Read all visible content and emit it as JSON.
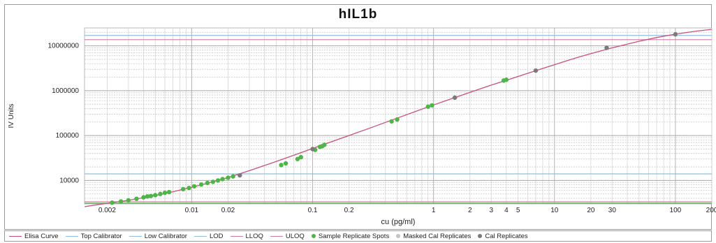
{
  "chart_data": {
    "type": "scatter",
    "title": "hIL1b",
    "xlabel": "cu (pg/ml)",
    "ylabel": "IV Units",
    "x_scale": "log",
    "y_scale": "log",
    "xlim": [
      0.0013,
      200
    ],
    "ylim": [
      3000,
      25000000
    ],
    "x_ticks": [
      {
        "value": 0.002,
        "label": "0.002"
      },
      {
        "value": 0.01,
        "label": "0.01"
      },
      {
        "value": 0.02,
        "label": "0.02"
      },
      {
        "value": 0.1,
        "label": "0.1"
      },
      {
        "value": 0.2,
        "label": "0.2"
      },
      {
        "value": 1,
        "label": "1"
      },
      {
        "value": 2,
        "label": "2"
      },
      {
        "value": 3,
        "label": "3"
      },
      {
        "value": 4,
        "label": "4"
      },
      {
        "value": 5,
        "label": "5"
      },
      {
        "value": 10,
        "label": "10"
      },
      {
        "value": 20,
        "label": "20"
      },
      {
        "value": 30,
        "label": "30"
      },
      {
        "value": 100,
        "label": "100"
      },
      {
        "value": 200,
        "label": "200"
      }
    ],
    "y_ticks": [
      {
        "value": 10000,
        "label": "10000"
      },
      {
        "value": 100000,
        "label": "100000"
      },
      {
        "value": 1000000,
        "label": "1000000"
      },
      {
        "value": 10000000,
        "label": "10000000"
      }
    ],
    "grid": true,
    "legend_position": "bottom",
    "series": [
      {
        "name": "Elisa Curve",
        "kind": "line",
        "color": "#c9507a",
        "x": [
          0.0013,
          0.002,
          0.003,
          0.005,
          0.007,
          0.01,
          0.015,
          0.02,
          0.03,
          0.05,
          0.07,
          0.1,
          0.15,
          0.2,
          0.3,
          0.5,
          0.7,
          1,
          1.5,
          2,
          3,
          4,
          5,
          7,
          10,
          15,
          20,
          30,
          50,
          70,
          100,
          150,
          200
        ],
        "y": [
          2600,
          3100,
          3600,
          4600,
          5600,
          7000,
          9300,
          11600,
          16500,
          26500,
          36500,
          51500,
          76000,
          100000,
          148000,
          244000,
          340000,
          480000,
          700000,
          920000,
          1330000,
          1700000,
          2070000,
          2780000,
          3800000,
          5350000,
          6700000,
          9000000,
          12600000,
          15300000,
          18200000,
          21300000,
          23300000
        ]
      },
      {
        "name": "Top Calibrator",
        "kind": "hline",
        "color": "#8fbfe0",
        "y": [
          17000000
        ]
      },
      {
        "name": "Low Calibrator",
        "kind": "hline",
        "color": "#8fbfe0",
        "y": [
          14000
        ]
      },
      {
        "name": "LOD",
        "kind": "hline",
        "color": "#8fbfe0",
        "y": [
          3050
        ]
      },
      {
        "name": "LLOQ",
        "kind": "hline",
        "color": "#d07aa0",
        "y": [
          3350
        ]
      },
      {
        "name": "ULOQ",
        "kind": "hline",
        "color": "#d07aa0",
        "y": [
          13700000
        ]
      },
      {
        "name": "Sample Replicate Spots",
        "kind": "points",
        "color": "#4fb548",
        "x": [
          0.0022,
          0.0026,
          0.003,
          0.0035,
          0.004,
          0.0043,
          0.0046,
          0.005,
          0.0055,
          0.006,
          0.0065,
          0.0085,
          0.0095,
          0.0105,
          0.012,
          0.0135,
          0.015,
          0.0165,
          0.018,
          0.02,
          0.022,
          0.055,
          0.06,
          0.075,
          0.08,
          0.105,
          0.115,
          0.12,
          0.125,
          0.45,
          0.5,
          0.9,
          0.97,
          3.8,
          4.0
        ],
        "y": [
          3200,
          3400,
          3600,
          3900,
          4200,
          4400,
          4500,
          4700,
          5000,
          5300,
          5500,
          6400,
          6800,
          7400,
          8100,
          8800,
          9300,
          10000,
          10700,
          11500,
          12300,
          22000,
          24000,
          30000,
          33000,
          48000,
          56000,
          58000,
          62000,
          207000,
          228000,
          440000,
          470000,
          1680000,
          1750000
        ]
      },
      {
        "name": "Masked Cal Replicates",
        "kind": "points",
        "color": "#c4c4c4",
        "x": [],
        "y": []
      },
      {
        "name": "Cal Replicates",
        "kind": "points",
        "color": "#7a7a7a",
        "x": [
          0.025,
          0.1,
          1.5,
          7,
          27,
          100
        ],
        "y": [
          13000,
          50000,
          700000,
          2800000,
          9000000,
          18000000
        ]
      }
    ]
  }
}
